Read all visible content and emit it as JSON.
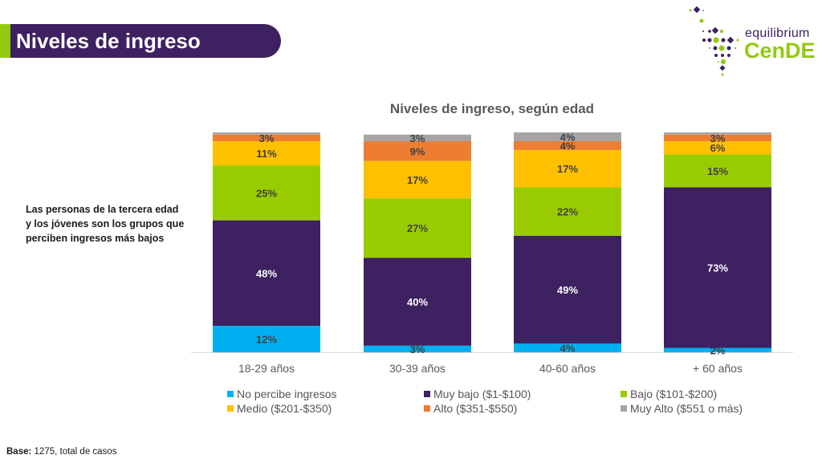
{
  "header": {
    "title": "Niveles de ingreso"
  },
  "logo": {
    "line1": "equilibrium",
    "line2": "CenDE"
  },
  "side_note": "Las personas de la tercera edad y los jóvenes son los grupos que perciben ingresos más bajos",
  "footer": {
    "label": "Base:",
    "text": " 1275, total de casos"
  },
  "colors": {
    "brand_purple": "#3d2160",
    "brand_green": "#94c912"
  },
  "chart_data": {
    "type": "bar",
    "stacked": true,
    "title": "Niveles de ingreso, según edad",
    "xlabel": "",
    "ylabel": "",
    "ylim": [
      0,
      100
    ],
    "grid": false,
    "legend_position": "bottom",
    "categories": [
      "18-29 años",
      "30-39 años",
      "40-60 años",
      "+ 60 años"
    ],
    "series": [
      {
        "name": "No percibe ingresos",
        "color": "#00b0f0",
        "values": [
          12,
          3,
          4,
          2
        ],
        "labels": [
          "12%",
          "3%",
          "4%",
          "2%"
        ]
      },
      {
        "name": "Muy bajo ($1-$100)",
        "color": "#3d2160",
        "values": [
          48,
          40,
          49,
          73
        ],
        "labels": [
          "48%",
          "40%",
          "49%",
          "73%"
        ]
      },
      {
        "name": "Bajo ($101-$200)",
        "color": "#99cc00",
        "values": [
          25,
          27,
          22,
          15
        ],
        "labels": [
          "25%",
          "27%",
          "22%",
          "15%"
        ]
      },
      {
        "name": "Medio ($201-$350)",
        "color": "#ffc000",
        "values": [
          11,
          17,
          17,
          6
        ],
        "labels": [
          "11%",
          "17%",
          "17%",
          "6%"
        ]
      },
      {
        "name": "Alto ($351-$550)",
        "color": "#ed7d31",
        "values": [
          3,
          9,
          4,
          3
        ],
        "labels": [
          "3%",
          "9%",
          "4%",
          "3%"
        ]
      },
      {
        "name": "Muy Alto ($551 o más)",
        "color": "#a5a5a5",
        "values": [
          1,
          3,
          4,
          1
        ],
        "labels": [
          "",
          "3%",
          "4%",
          ""
        ]
      }
    ]
  }
}
